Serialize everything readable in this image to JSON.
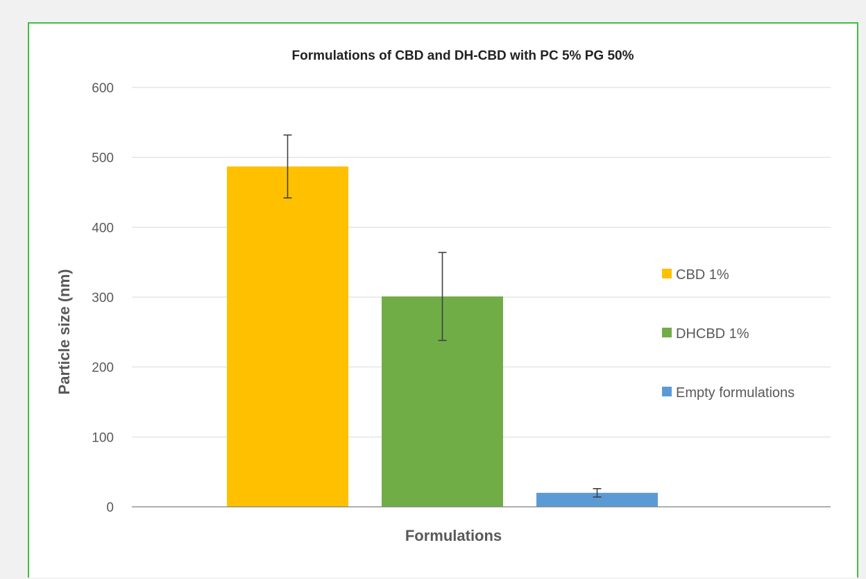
{
  "chart_data": {
    "type": "bar",
    "title": "Formulations of CBD and DH-CBD with PC 5% PG 50%",
    "xlabel": "Formulations",
    "ylabel": "Particle size (nm)",
    "ylim": [
      0,
      600
    ],
    "yticks": [
      0,
      100,
      200,
      300,
      400,
      500,
      600
    ],
    "grid": true,
    "legend_position": "right",
    "series": [
      {
        "name": "CBD 1%",
        "value": 487,
        "error": 45,
        "color": "#ffc000"
      },
      {
        "name": "DHCBD 1%",
        "value": 301,
        "error": 63,
        "color": "#70ad47"
      },
      {
        "name": "Empty formulations",
        "value": 20,
        "error": 6,
        "color": "#5b9bd5"
      }
    ]
  }
}
